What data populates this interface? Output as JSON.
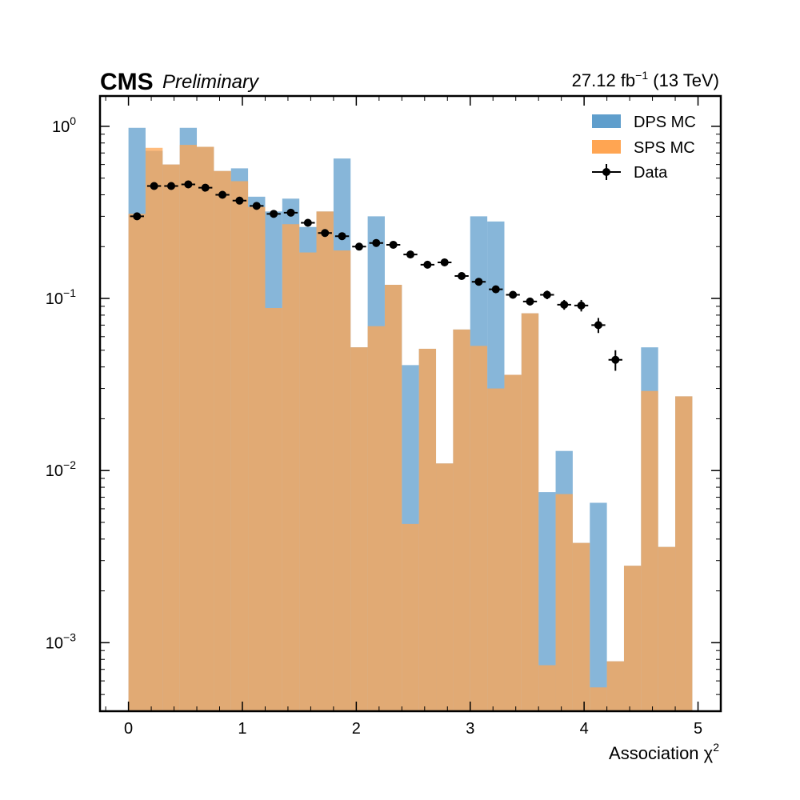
{
  "header": {
    "experiment": "CMS",
    "status": "Preliminary",
    "lumi_value": "27.12 fb",
    "lumi_exponent": "−1",
    "lumi_energy": " (13 TeV)"
  },
  "chart_data": {
    "type": "bar",
    "xlabel": "Association χ",
    "xlabel_exponent": "2",
    "ylabel": "",
    "yscale": "log",
    "xlim": [
      -0.25,
      5.2
    ],
    "ylim": [
      0.0004,
      1.5
    ],
    "x_ticks": [
      "0",
      "1",
      "2",
      "3",
      "4",
      "5"
    ],
    "y_ticks": [
      {
        "base": "10",
        "exponent": "0",
        "value": 1
      },
      {
        "base": "10",
        "exponent": "−1",
        "value": 0.1
      },
      {
        "base": "10",
        "exponent": "−2",
        "value": 0.01
      },
      {
        "base": "10",
        "exponent": "−3",
        "value": 0.001
      }
    ],
    "legend_position": "top-right",
    "bin_edges": [
      0,
      0.15,
      0.3,
      0.45,
      0.6,
      0.75,
      0.9,
      1.05,
      1.2,
      1.35,
      1.5,
      1.65,
      1.8,
      1.95,
      2.1,
      2.25,
      2.4,
      2.55,
      2.7,
      2.85,
      3.0,
      3.15,
      3.3,
      3.45,
      3.6,
      3.75,
      3.9,
      4.05,
      4.2,
      4.35,
      4.5,
      4.65,
      4.8,
      4.95
    ],
    "series": [
      {
        "name": "DPS MC",
        "color": "#5f9ecc",
        "values": [
          0.98,
          0.72,
          0.6,
          0.98,
          0.76,
          0.55,
          0.57,
          0.39,
          0.32,
          0.38,
          0.26,
          0.32,
          0.65,
          0.052,
          0.3,
          0.12,
          0.041,
          0.051,
          0.011,
          0.066,
          0.3,
          0.28,
          0.036,
          0.082,
          0.0075,
          0.013,
          0.0038,
          0.0065,
          0.00078,
          0.0028,
          0.052,
          0.0036,
          0.027
        ]
      },
      {
        "name": "SPS MC",
        "color": "#ffa552",
        "values": [
          0.31,
          0.75,
          0.6,
          0.78,
          0.76,
          0.55,
          0.48,
          0.34,
          0.088,
          0.27,
          0.185,
          0.32,
          0.19,
          0.052,
          0.069,
          0.12,
          0.0049,
          0.051,
          0.011,
          0.066,
          0.053,
          0.03,
          0.036,
          0.082,
          0.00074,
          0.0073,
          0.0038,
          0.00055,
          0.00078,
          0.0028,
          0.029,
          0.0036,
          0.027
        ]
      },
      {
        "name": "Data",
        "color": "#000000",
        "values": [
          0.3,
          0.45,
          0.45,
          0.46,
          0.44,
          0.4,
          0.37,
          0.345,
          0.31,
          0.315,
          0.275,
          0.24,
          0.23,
          0.2,
          0.21,
          0.205,
          0.18,
          0.157,
          0.162,
          0.135,
          0.125,
          0.113,
          0.105,
          0.096,
          0.105,
          0.092,
          0.091,
          0.07,
          0.044
        ],
        "errors": [
          0.01,
          0.01,
          0.01,
          0.01,
          0.01,
          0.01,
          0.01,
          0.01,
          0.01,
          0.01,
          0.008,
          0.008,
          0.008,
          0.007,
          0.007,
          0.007,
          0.006,
          0.006,
          0.006,
          0.005,
          0.005,
          0.005,
          0.005,
          0.005,
          0.006,
          0.006,
          0.007,
          0.007,
          0.006
        ]
      }
    ]
  }
}
